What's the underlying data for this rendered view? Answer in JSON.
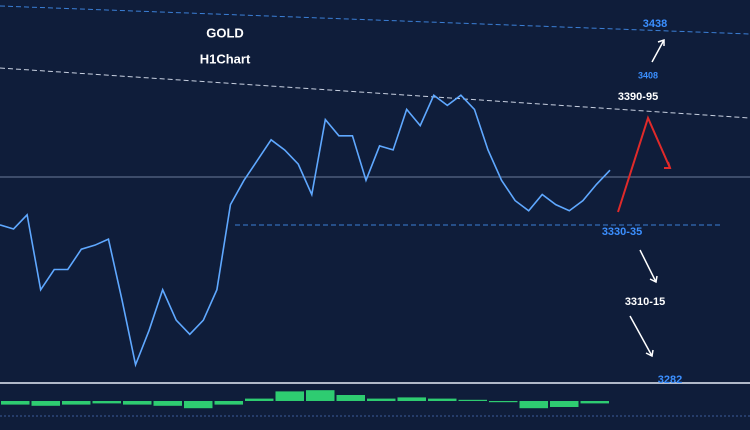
{
  "chart_data": {
    "type": "line",
    "title": "GOLD",
    "subtitle": "H1Chart",
    "values": [
      3339,
      3337,
      3344,
      3307,
      3317,
      3317,
      3327,
      3329,
      3332,
      3302,
      3270,
      3287,
      3307,
      3292,
      3285,
      3292,
      3307,
      3349,
      3361,
      3371,
      3381,
      3376,
      3369,
      3354,
      3391,
      3383,
      3383,
      3361,
      3378,
      3376,
      3396,
      3388,
      3403,
      3398,
      3403,
      3396,
      3376,
      3361,
      3351,
      3346,
      3354,
      3349,
      3346,
      3351,
      3359,
      3366
    ],
    "color": "#5fa8ff",
    "ylim": [
      3260,
      3450
    ],
    "annotations": [
      "3438",
      "3408",
      "3390-95",
      "3330-35",
      "3310-15",
      "3282"
    ],
    "indicator": {
      "values": [
        -0.3,
        -0.4,
        -0.3,
        -0.2,
        -0.3,
        -0.4,
        -0.6,
        -0.3,
        0.2,
        0.8,
        0.9,
        0.5,
        0.2,
        0.3,
        0.2,
        0.1,
        -0.1,
        -0.6,
        -0.5,
        -0.2
      ],
      "color": "#2ecc71",
      "ylim": [
        -1,
        1
      ]
    }
  }
}
